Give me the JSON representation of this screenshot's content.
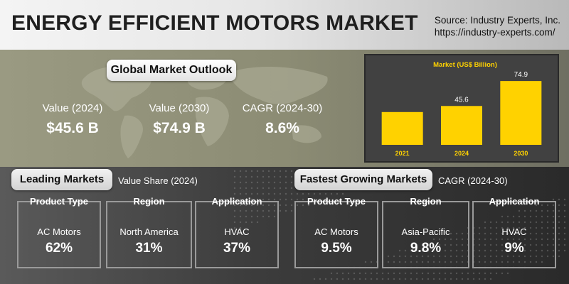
{
  "header": {
    "title": "ENERGY EFFICIENT MOTORS MARKET",
    "source_line1": "Source: Industry Experts, Inc.",
    "source_line2": "https://industry-experts.com/"
  },
  "outlook": {
    "title": "Global Market Outlook",
    "kpis": [
      {
        "label": "Value (2024)",
        "value": "$45.6 B"
      },
      {
        "label": "Value (2030)",
        "value": "$74.9 B"
      },
      {
        "label": "CAGR (2024-30)",
        "value": "8.6%"
      }
    ]
  },
  "chart_data": {
    "type": "bar",
    "title": "Market (US$ Billion)",
    "categories": [
      "2021",
      "2024",
      "2030"
    ],
    "values": [
      null,
      45.6,
      74.9
    ],
    "data_labels": [
      "",
      "45.6",
      "74.9"
    ],
    "estimated_values": [
      38.5,
      45.6,
      74.9
    ],
    "ylim": [
      0,
      80
    ],
    "grid": false,
    "bar_color": "#ffd200",
    "title_color": "#ffd200"
  },
  "leading": {
    "title": "Leading Markets",
    "subtitle": "Value Share (2024)",
    "cards": [
      {
        "header": "Product Type",
        "label": "AC Motors",
        "value": "62%"
      },
      {
        "header": "Region",
        "label": "North America",
        "value": "31%"
      },
      {
        "header": "Application",
        "label": "HVAC",
        "value": "37%"
      }
    ]
  },
  "fastest": {
    "title": "Fastest Growing Markets",
    "subtitle": "CAGR (2024-30)",
    "cards": [
      {
        "header": "Product Type",
        "label": "AC Motors",
        "value": "9.5%"
      },
      {
        "header": "Region",
        "label": "Asia-Pacific",
        "value": "9.8%"
      },
      {
        "header": "Application",
        "label": "HVAC",
        "value": "9%"
      }
    ]
  }
}
